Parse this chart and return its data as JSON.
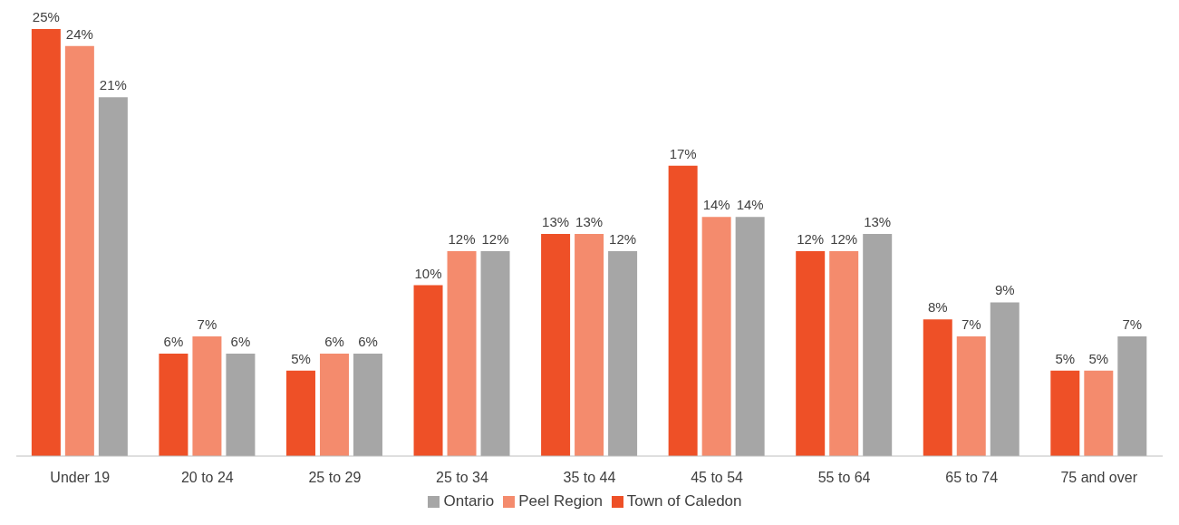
{
  "chart_data": {
    "type": "bar",
    "categories": [
      "Under 19",
      "20 to 24",
      "25 to 29",
      "25 to 34",
      "35 to 44",
      "45 to 54",
      "55 to 64",
      "65 to 74",
      "75 and over"
    ],
    "series": [
      {
        "name": "Town of Caledon",
        "color": "#ee5027",
        "values": [
          25,
          6,
          5,
          10,
          13,
          17,
          12,
          8,
          5
        ],
        "value_labels": [
          "25%",
          "6%",
          "5%",
          "10%",
          "13%",
          "17%",
          "12%",
          "8%",
          "5%"
        ]
      },
      {
        "name": "Peel Region",
        "color": "#f48b6d",
        "values": [
          24,
          7,
          6,
          12,
          13,
          14,
          12,
          7,
          5
        ],
        "value_labels": [
          "24%",
          "7%",
          "6%",
          "12%",
          "13%",
          "14%",
          "12%",
          "7%",
          "5%"
        ]
      },
      {
        "name": "Ontario",
        "color": "#a6a6a6",
        "values": [
          21,
          6,
          6,
          12,
          12,
          14,
          13,
          9,
          7
        ],
        "value_labels": [
          "21%",
          "6%",
          "6%",
          "12%",
          "12%",
          "14%",
          "13%",
          "9%",
          "7%"
        ]
      }
    ],
    "grid": false,
    "legend": "bottom"
  }
}
